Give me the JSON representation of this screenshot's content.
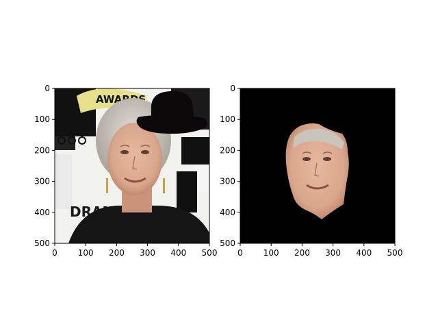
{
  "chart_data": [
    {
      "type": "image",
      "panel": "left",
      "content": "portrait of a woman with silver hair in front of an awards backdrop, black bowler hat overlay",
      "printed_text_in_image": [
        "AWARDS",
        "DRAMA"
      ],
      "xlim": [
        0,
        500
      ],
      "ylim": [
        500,
        0
      ],
      "xticks": [
        "0",
        "100",
        "200",
        "300",
        "400",
        "500"
      ],
      "yticks": [
        "0",
        "100",
        "200",
        "300",
        "400",
        "500"
      ],
      "grid": false
    },
    {
      "type": "image",
      "panel": "right",
      "content": "segmented face region on black background",
      "xlim": [
        0,
        500
      ],
      "ylim": [
        500,
        0
      ],
      "xticks": [
        "0",
        "100",
        "200",
        "300",
        "400",
        "500"
      ],
      "yticks": [
        "0",
        "100",
        "200",
        "300",
        "400",
        "500"
      ],
      "grid": false
    }
  ],
  "colors": {
    "hat": "#0a0808",
    "mask_background": "#000000",
    "skin": "#d9a78c",
    "hair": "#c9c4bc",
    "backdrop_yellow": "#e6e08a"
  }
}
